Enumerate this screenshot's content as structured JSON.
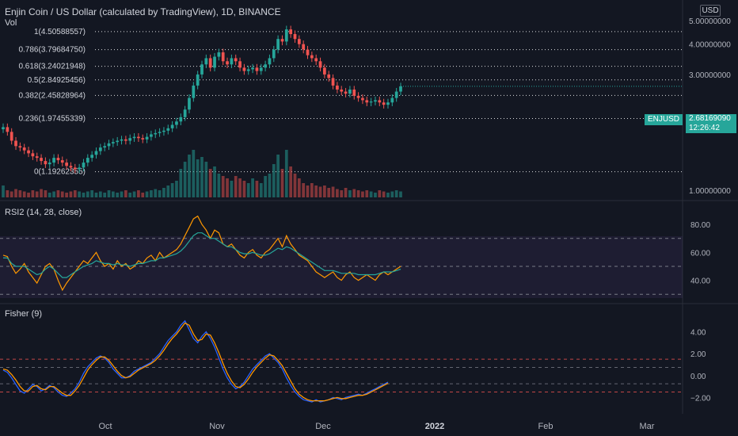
{
  "header": {
    "title": "Enjin Coin / US Dollar (calculated by TradingView), 1D, BINANCE",
    "volume_label": "Vol",
    "scale_badge": "USD"
  },
  "price_tag": {
    "symbol": "ENJUSD",
    "price": "2.68169090",
    "countdown": "12:26:42"
  },
  "colors": {
    "background": "#131722",
    "up": "#26a69a",
    "down": "#ef5350",
    "rsi_fast": "#ff9800",
    "rsi_slow": "#26a69a",
    "fisher": "#2962ff",
    "trigger": "#ff9800",
    "level_line": "#ef5350",
    "fib_line": "#ffffff"
  },
  "chart_data": [
    {
      "type": "candlestick",
      "title": "Enjin Coin / US Dollar (calculated by TradingView), 1D, BINANCE",
      "y_ticks": [
        "1.00000000",
        "2.00000000",
        "3.00000000",
        "4.00000000",
        "5.00000000"
      ],
      "x_ticks": [
        "Oct",
        "Nov",
        "Dec",
        "2022",
        "Feb",
        "Mar"
      ],
      "fib_levels": [
        {
          "label": "1(4.50588557)",
          "value": 4.50588557
        },
        {
          "label": "0.786(3.79684750)",
          "value": 3.7968475
        },
        {
          "label": "0.618(3.24021948)",
          "value": 3.24021948
        },
        {
          "label": "0.5(2.84925456)",
          "value": 2.84925456
        },
        {
          "label": "0.382(2.45828964)",
          "value": 2.45828964
        },
        {
          "label": "0.236(1.97455339)",
          "value": 1.97455339
        },
        {
          "label": "0(1.19262355)",
          "value": 1.19262355
        }
      ],
      "last_price": 2.6816909,
      "close": [
        1.82,
        1.74,
        1.6,
        1.52,
        1.5,
        1.46,
        1.42,
        1.38,
        1.36,
        1.32,
        1.28,
        1.3,
        1.36,
        1.33,
        1.3,
        1.26,
        1.24,
        1.22,
        1.24,
        1.3,
        1.36,
        1.4,
        1.45,
        1.5,
        1.52,
        1.56,
        1.58,
        1.6,
        1.62,
        1.6,
        1.64,
        1.66,
        1.64,
        1.62,
        1.66,
        1.7,
        1.72,
        1.74,
        1.76,
        1.8,
        1.86,
        1.92,
        2.0,
        2.15,
        2.4,
        2.7,
        3.0,
        3.3,
        3.5,
        3.2,
        3.55,
        3.7,
        3.4,
        3.3,
        3.5,
        3.4,
        3.2,
        3.1,
        3.15,
        3.2,
        3.1,
        3.2,
        3.3,
        3.5,
        3.8,
        4.2,
        4.1,
        4.6,
        4.4,
        4.2,
        4.0,
        3.8,
        3.6,
        3.5,
        3.4,
        3.2,
        3.0,
        2.9,
        2.7,
        2.6,
        2.55,
        2.5,
        2.6,
        2.45,
        2.4,
        2.35,
        2.3,
        2.32,
        2.35,
        2.3,
        2.25,
        2.3,
        2.4,
        2.55,
        2.68
      ],
      "volume": [
        0.5,
        0.3,
        0.25,
        0.35,
        0.3,
        0.25,
        0.2,
        0.3,
        0.25,
        0.35,
        0.3,
        0.2,
        0.25,
        0.3,
        0.25,
        0.2,
        0.25,
        0.3,
        0.25,
        0.2,
        0.25,
        0.3,
        0.2,
        0.25,
        0.2,
        0.3,
        0.25,
        0.2,
        0.25,
        0.3,
        0.2,
        0.25,
        0.3,
        0.2,
        0.25,
        0.3,
        0.35,
        0.3,
        0.4,
        0.5,
        0.6,
        0.7,
        1.2,
        1.5,
        1.8,
        2.0,
        1.6,
        1.7,
        1.5,
        1.2,
        1.3,
        1.0,
        0.9,
        0.8,
        0.7,
        0.9,
        0.8,
        0.7,
        0.6,
        0.8,
        0.7,
        0.6,
        0.9,
        1.0,
        1.4,
        1.8,
        1.2,
        2.0,
        1.3,
        1.0,
        0.8,
        0.6,
        0.5,
        0.6,
        0.5,
        0.45,
        0.5,
        0.4,
        0.45,
        0.35,
        0.3,
        0.4,
        0.3,
        0.35,
        0.3,
        0.25,
        0.3,
        0.25,
        0.2,
        0.3,
        0.25,
        0.2,
        0.25,
        0.3,
        0.25
      ]
    },
    {
      "type": "line",
      "title": "RSI2 (14, 28, close)",
      "y_ticks": [
        "80.00",
        "60.00",
        "40.00"
      ],
      "bands": [
        30,
        50,
        70
      ],
      "series": [
        {
          "values": [
            58,
            57,
            50,
            45,
            48,
            52,
            46,
            42,
            38,
            44,
            50,
            52,
            48,
            40,
            33,
            38,
            42,
            46,
            50,
            54,
            52,
            56,
            60,
            54,
            50,
            52,
            48,
            54,
            50,
            52,
            48,
            50,
            54,
            52,
            56,
            58,
            54,
            60,
            56,
            58,
            60,
            62,
            66,
            72,
            78,
            84,
            86,
            80,
            76,
            70,
            76,
            74,
            66,
            64,
            66,
            62,
            58,
            56,
            60,
            62,
            58,
            56,
            60,
            62,
            66,
            70,
            64,
            72,
            66,
            62,
            58,
            56,
            54,
            50,
            46,
            44,
            42,
            44,
            46,
            42,
            40,
            44,
            46,
            42,
            40,
            42,
            44,
            42,
            40,
            44,
            46,
            44,
            46,
            48,
            50
          ]
        },
        {
          "values": [
            56,
            56,
            52,
            50,
            50,
            50,
            48,
            46,
            44,
            45,
            48,
            50,
            48,
            45,
            42,
            42,
            44,
            46,
            48,
            50,
            51,
            52,
            54,
            53,
            52,
            52,
            51,
            52,
            51,
            51,
            50,
            51,
            52,
            52,
            53,
            54,
            54,
            56,
            56,
            57,
            58,
            59,
            61,
            64,
            68,
            72,
            74,
            74,
            72,
            70,
            70,
            68,
            66,
            64,
            64,
            62,
            60,
            59,
            59,
            60,
            59,
            58,
            58,
            59,
            61,
            63,
            62,
            64,
            63,
            61,
            59,
            57,
            55,
            53,
            51,
            49,
            47,
            47,
            47,
            46,
            45,
            45,
            45,
            45,
            44,
            44,
            44,
            44,
            44,
            45,
            46,
            46,
            46,
            47,
            48
          ]
        }
      ]
    },
    {
      "type": "line",
      "title": "Fisher (9)",
      "y_ticks": [
        "4.00",
        "2.00",
        "0.00",
        "−2.00"
      ],
      "levels": [
        1.5,
        0.75,
        -0.75,
        -1.5
      ],
      "series": [
        {
          "values": [
            0.5,
            0.3,
            -0.2,
            -0.8,
            -1.4,
            -1.6,
            -1.2,
            -0.8,
            -1.0,
            -1.4,
            -1.2,
            -0.9,
            -1.1,
            -1.5,
            -1.8,
            -1.9,
            -1.6,
            -1.2,
            -0.6,
            0.2,
            0.8,
            1.2,
            1.6,
            1.8,
            1.6,
            1.2,
            0.6,
            0.2,
            -0.2,
            -0.2,
            0.0,
            0.4,
            0.6,
            0.8,
            1.0,
            1.2,
            1.6,
            2.0,
            2.6,
            3.2,
            3.6,
            4.0,
            4.6,
            5.0,
            4.2,
            3.4,
            3.0,
            3.6,
            4.0,
            3.4,
            2.6,
            1.6,
            0.6,
            -0.2,
            -0.8,
            -1.2,
            -1.0,
            -0.6,
            0.0,
            0.6,
            1.0,
            1.4,
            1.8,
            2.0,
            1.6,
            1.2,
            0.6,
            -0.2,
            -0.9,
            -1.5,
            -1.9,
            -2.2,
            -2.3,
            -2.4,
            -2.2,
            -2.4,
            -2.3,
            -2.2,
            -2.0,
            -2.1,
            -2.2,
            -2.0,
            -1.9,
            -1.8,
            -1.7,
            -1.8,
            -1.6,
            -1.4,
            -1.2,
            -1.0,
            -0.8,
            -0.6
          ]
        },
        {
          "values": [
            0.6,
            0.5,
            0.1,
            -0.4,
            -1.0,
            -1.4,
            -1.4,
            -1.0,
            -0.9,
            -1.2,
            -1.3,
            -1.0,
            -1.0,
            -1.3,
            -1.6,
            -1.8,
            -1.8,
            -1.4,
            -0.9,
            -0.2,
            0.5,
            1.0,
            1.4,
            1.7,
            1.7,
            1.4,
            0.9,
            0.4,
            0.0,
            -0.2,
            -0.1,
            0.2,
            0.5,
            0.7,
            0.9,
            1.1,
            1.4,
            1.8,
            2.3,
            2.9,
            3.4,
            3.8,
            4.3,
            4.8,
            4.6,
            3.8,
            3.2,
            3.3,
            3.8,
            3.7,
            3.0,
            2.1,
            1.1,
            0.2,
            -0.5,
            -1.0,
            -1.1,
            -0.8,
            -0.3,
            0.3,
            0.8,
            1.2,
            1.6,
            1.9,
            1.8,
            1.4,
            0.9,
            0.2,
            -0.5,
            -1.2,
            -1.7,
            -2.0,
            -2.2,
            -2.3,
            -2.3,
            -2.3,
            -2.3,
            -2.2,
            -2.1,
            -2.0,
            -2.1,
            -2.1,
            -2.0,
            -1.9,
            -1.8,
            -1.8,
            -1.7,
            -1.5,
            -1.3,
            -1.1,
            -0.9,
            -0.7
          ]
        }
      ]
    }
  ]
}
